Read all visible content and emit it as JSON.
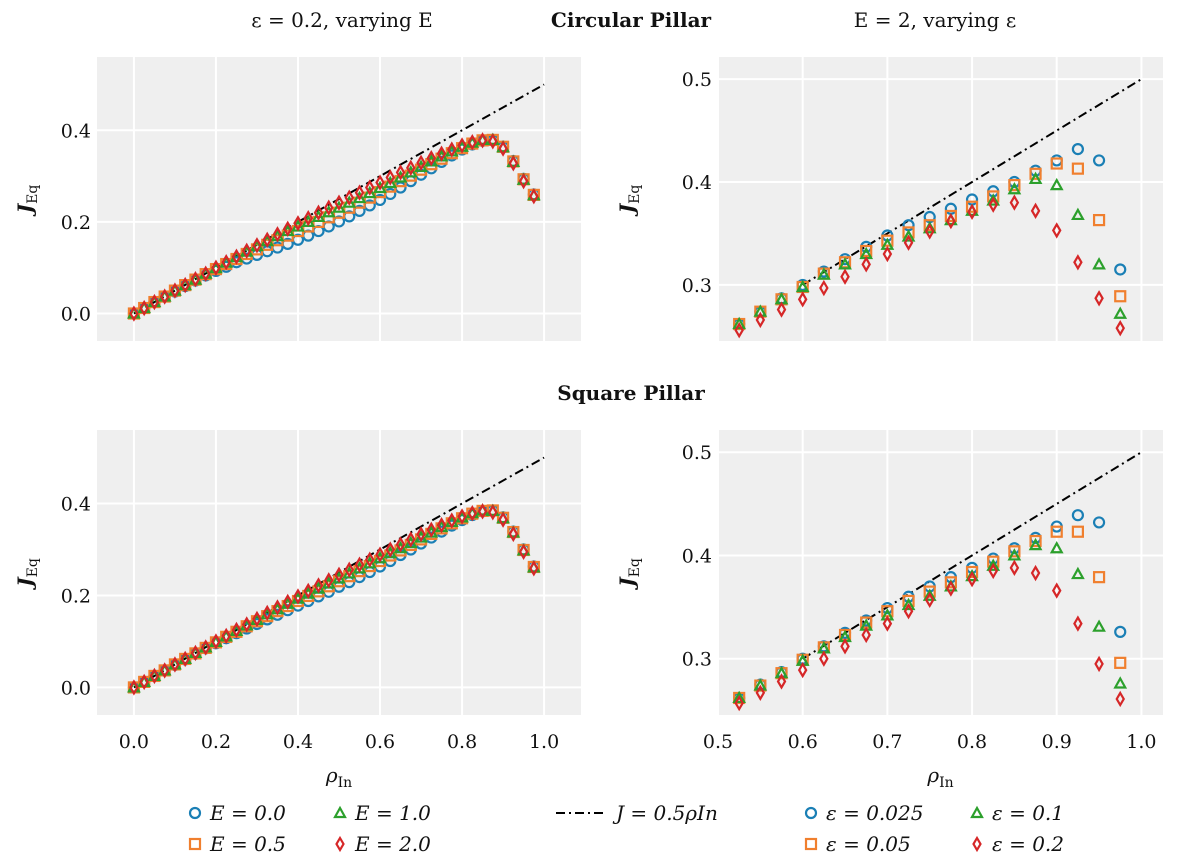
{
  "header": {
    "left_title": "ε = 0.2, varying E",
    "center_title_top": "Circular Pillar",
    "center_title_bottom": "Square Pillar",
    "right_title": "E = 2, varying ε"
  },
  "colors": {
    "series_1": "#1a7fb5",
    "series_2": "#f07f2e",
    "series_3": "#2ca02c",
    "series_4": "#d62728",
    "reference": "#000000",
    "panel_background": "#efefef",
    "grid": "#ffffff"
  },
  "legend": {
    "left": [
      "E = 0.0",
      "E = 0.5",
      "E = 1.0",
      "E = 2.0"
    ],
    "middle": "J = 0.5ρIn",
    "right": [
      "ε = 0.025",
      "ε = 0.05",
      "ε = 0.1",
      "ε = 0.2"
    ]
  },
  "chart_data": [
    {
      "id": "circular-left",
      "type": "scatter",
      "title": "ε = 0.2, varying E",
      "xlabel": "ρIn",
      "ylabel": "JEq",
      "xlim": [
        -0.09,
        1.09
      ],
      "ylim": [
        -0.06,
        0.56
      ],
      "xticks": [
        0.0,
        0.2,
        0.4,
        0.6,
        0.8,
        1.0
      ],
      "xtick_labels": [
        "0.0",
        "0.2",
        "0.4",
        "0.6",
        "0.8",
        "1.0"
      ],
      "show_x_tick_labels": false,
      "yticks": [
        0.0,
        0.2,
        0.4
      ],
      "ytick_labels": [
        "0.0",
        "0.2",
        "0.4"
      ],
      "grid": true,
      "reference_line": {
        "label": "J = 0.5ρIn",
        "slope": 0.5,
        "x": [
          0.0,
          1.0
        ]
      },
      "x": [
        0.0,
        0.025,
        0.05,
        0.075,
        0.1,
        0.125,
        0.15,
        0.175,
        0.2,
        0.225,
        0.25,
        0.275,
        0.3,
        0.325,
        0.35,
        0.375,
        0.4,
        0.425,
        0.45,
        0.475,
        0.5,
        0.525,
        0.55,
        0.575,
        0.6,
        0.625,
        0.65,
        0.675,
        0.7,
        0.725,
        0.75,
        0.775,
        0.8,
        0.825,
        0.85,
        0.875,
        0.9,
        0.925,
        0.95,
        0.975
      ],
      "series": [
        {
          "name": "E = 0.0",
          "marker": "circle",
          "color": "#1a7fb5",
          "values": [
            0.0,
            0.012,
            0.025,
            0.037,
            0.048,
            0.06,
            0.072,
            0.083,
            0.093,
            0.102,
            0.112,
            0.12,
            0.128,
            0.136,
            0.144,
            0.152,
            0.161,
            0.17,
            0.18,
            0.19,
            0.201,
            0.212,
            0.224,
            0.236,
            0.248,
            0.261,
            0.275,
            0.289,
            0.303,
            0.317,
            0.331,
            0.345,
            0.358,
            0.369,
            0.377,
            0.379,
            0.364,
            0.333,
            0.294,
            0.26
          ]
        },
        {
          "name": "E = 0.5",
          "marker": "square",
          "color": "#f07f2e",
          "values": [
            0.0,
            0.012,
            0.025,
            0.037,
            0.05,
            0.062,
            0.074,
            0.086,
            0.097,
            0.108,
            0.119,
            0.13,
            0.14,
            0.15,
            0.16,
            0.17,
            0.18,
            0.19,
            0.2,
            0.21,
            0.22,
            0.231,
            0.242,
            0.253,
            0.265,
            0.277,
            0.289,
            0.301,
            0.314,
            0.326,
            0.338,
            0.35,
            0.361,
            0.371,
            0.378,
            0.379,
            0.364,
            0.332,
            0.293,
            0.259
          ]
        },
        {
          "name": "E = 1.0",
          "marker": "triangle",
          "color": "#2ca02c",
          "values": [
            0.0,
            0.012,
            0.025,
            0.037,
            0.05,
            0.062,
            0.074,
            0.087,
            0.099,
            0.111,
            0.123,
            0.135,
            0.147,
            0.158,
            0.169,
            0.18,
            0.19,
            0.2,
            0.211,
            0.221,
            0.231,
            0.242,
            0.252,
            0.263,
            0.274,
            0.285,
            0.297,
            0.308,
            0.32,
            0.332,
            0.343,
            0.354,
            0.364,
            0.373,
            0.379,
            0.379,
            0.363,
            0.331,
            0.292,
            0.258
          ]
        },
        {
          "name": "E = 2.0",
          "marker": "diamond",
          "color": "#d62728",
          "values": [
            0.0,
            0.012,
            0.025,
            0.037,
            0.05,
            0.062,
            0.075,
            0.087,
            0.1,
            0.112,
            0.124,
            0.137,
            0.149,
            0.161,
            0.173,
            0.185,
            0.197,
            0.208,
            0.22,
            0.231,
            0.242,
            0.253,
            0.264,
            0.275,
            0.286,
            0.297,
            0.308,
            0.318,
            0.329,
            0.339,
            0.349,
            0.358,
            0.367,
            0.374,
            0.378,
            0.376,
            0.36,
            0.328,
            0.289,
            0.256
          ]
        }
      ]
    },
    {
      "id": "circular-right",
      "type": "scatter",
      "title": "E = 2, varying ε",
      "xlabel": "ρIn",
      "ylabel": "JEq",
      "xlim": [
        0.5,
        1.0255
      ],
      "ylim": [
        0.2455,
        0.5215
      ],
      "xticks": [
        0.5,
        0.6,
        0.7,
        0.8,
        0.9,
        1.0
      ],
      "xtick_labels": [
        "0.5",
        "0.6",
        "0.7",
        "0.8",
        "0.9",
        "1.0"
      ],
      "show_x_tick_labels": false,
      "yticks": [
        0.3,
        0.4,
        0.5
      ],
      "ytick_labels": [
        "0.3",
        "0.4",
        "0.5"
      ],
      "grid": true,
      "reference_line": {
        "label": "J = 0.5ρIn",
        "slope": 0.5,
        "x": [
          0.6,
          1.0
        ]
      },
      "x": [
        0.525,
        0.55,
        0.575,
        0.6,
        0.625,
        0.65,
        0.675,
        0.7,
        0.725,
        0.75,
        0.775,
        0.8,
        0.825,
        0.85,
        0.875,
        0.9,
        0.925,
        0.95,
        0.975
      ],
      "series": [
        {
          "name": "ε = 0.025",
          "marker": "circle",
          "color": "#1a7fb5",
          "values": [
            0.262,
            0.274,
            0.287,
            0.3,
            0.313,
            0.325,
            0.337,
            0.348,
            0.358,
            0.366,
            0.374,
            0.383,
            0.391,
            0.4,
            0.411,
            0.421,
            0.432,
            0.421,
            0.315
          ]
        },
        {
          "name": "ε = 0.05",
          "marker": "square",
          "color": "#f07f2e",
          "values": [
            0.262,
            0.274,
            0.286,
            0.298,
            0.311,
            0.322,
            0.333,
            0.343,
            0.351,
            0.358,
            0.367,
            0.376,
            0.386,
            0.397,
            0.408,
            0.418,
            0.413,
            0.363,
            0.289
          ]
        },
        {
          "name": "ε = 0.1",
          "marker": "triangle",
          "color": "#2ca02c",
          "values": [
            0.262,
            0.274,
            0.286,
            0.298,
            0.31,
            0.32,
            0.33,
            0.339,
            0.347,
            0.355,
            0.363,
            0.372,
            0.382,
            0.393,
            0.403,
            0.397,
            0.368,
            0.32,
            0.272
          ]
        },
        {
          "name": "ε = 0.2",
          "marker": "diamond",
          "color": "#d62728",
          "values": [
            0.256,
            0.266,
            0.276,
            0.286,
            0.297,
            0.308,
            0.32,
            0.33,
            0.341,
            0.352,
            0.362,
            0.371,
            0.378,
            0.38,
            0.372,
            0.353,
            0.322,
            0.287,
            0.258
          ]
        }
      ]
    },
    {
      "id": "square-left",
      "type": "scatter",
      "title": "ε = 0.2, varying E",
      "xlabel": "ρIn",
      "ylabel": "JEq",
      "xlim": [
        -0.09,
        1.09
      ],
      "ylim": [
        -0.06,
        0.56
      ],
      "xticks": [
        0.0,
        0.2,
        0.4,
        0.6,
        0.8,
        1.0
      ],
      "xtick_labels": [
        "0.0",
        "0.2",
        "0.4",
        "0.6",
        "0.8",
        "1.0"
      ],
      "show_x_tick_labels": true,
      "yticks": [
        0.0,
        0.2,
        0.4
      ],
      "ytick_labels": [
        "0.0",
        "0.2",
        "0.4"
      ],
      "grid": true,
      "reference_line": {
        "label": "J = 0.5ρIn",
        "slope": 0.5,
        "x": [
          0.0,
          1.0
        ]
      },
      "x": [
        0.0,
        0.025,
        0.05,
        0.075,
        0.1,
        0.125,
        0.15,
        0.175,
        0.2,
        0.225,
        0.25,
        0.275,
        0.3,
        0.325,
        0.35,
        0.375,
        0.4,
        0.425,
        0.45,
        0.475,
        0.5,
        0.525,
        0.55,
        0.575,
        0.6,
        0.625,
        0.65,
        0.675,
        0.7,
        0.725,
        0.75,
        0.775,
        0.8,
        0.825,
        0.85,
        0.875,
        0.9,
        0.925,
        0.95,
        0.975
      ],
      "series": [
        {
          "name": "E = 0.0",
          "marker": "circle",
          "color": "#1a7fb5",
          "values": [
            0.0,
            0.012,
            0.025,
            0.037,
            0.049,
            0.061,
            0.073,
            0.085,
            0.096,
            0.107,
            0.118,
            0.128,
            0.138,
            0.148,
            0.158,
            0.168,
            0.178,
            0.188,
            0.198,
            0.208,
            0.219,
            0.229,
            0.24,
            0.251,
            0.263,
            0.275,
            0.288,
            0.3,
            0.313,
            0.326,
            0.339,
            0.352,
            0.364,
            0.375,
            0.383,
            0.385,
            0.37,
            0.339,
            0.3,
            0.263
          ]
        },
        {
          "name": "E = 0.5",
          "marker": "square",
          "color": "#f07f2e",
          "values": [
            0.0,
            0.012,
            0.025,
            0.037,
            0.05,
            0.062,
            0.074,
            0.086,
            0.098,
            0.11,
            0.121,
            0.133,
            0.144,
            0.155,
            0.166,
            0.177,
            0.188,
            0.199,
            0.209,
            0.22,
            0.231,
            0.242,
            0.253,
            0.264,
            0.275,
            0.287,
            0.298,
            0.31,
            0.322,
            0.334,
            0.346,
            0.357,
            0.368,
            0.378,
            0.384,
            0.385,
            0.369,
            0.338,
            0.299,
            0.262
          ]
        },
        {
          "name": "E = 1.0",
          "marker": "triangle",
          "color": "#2ca02c",
          "values": [
            0.0,
            0.012,
            0.025,
            0.037,
            0.05,
            0.062,
            0.075,
            0.087,
            0.099,
            0.111,
            0.123,
            0.135,
            0.147,
            0.159,
            0.17,
            0.182,
            0.193,
            0.204,
            0.215,
            0.226,
            0.237,
            0.248,
            0.259,
            0.27,
            0.281,
            0.292,
            0.303,
            0.314,
            0.326,
            0.337,
            0.349,
            0.36,
            0.37,
            0.379,
            0.385,
            0.384,
            0.368,
            0.337,
            0.298,
            0.261
          ]
        },
        {
          "name": "E = 2.0",
          "marker": "diamond",
          "color": "#d62728",
          "values": [
            0.0,
            0.012,
            0.025,
            0.037,
            0.05,
            0.062,
            0.075,
            0.087,
            0.1,
            0.112,
            0.125,
            0.137,
            0.149,
            0.162,
            0.174,
            0.186,
            0.198,
            0.21,
            0.222,
            0.233,
            0.245,
            0.256,
            0.267,
            0.278,
            0.289,
            0.3,
            0.311,
            0.322,
            0.333,
            0.343,
            0.353,
            0.363,
            0.372,
            0.379,
            0.383,
            0.381,
            0.365,
            0.334,
            0.295,
            0.259
          ]
        }
      ]
    },
    {
      "id": "square-right",
      "type": "scatter",
      "title": "E = 2, varying ε",
      "xlabel": "ρIn",
      "ylabel": "JEq",
      "xlim": [
        0.5,
        1.0255
      ],
      "ylim": [
        0.2455,
        0.5215
      ],
      "xticks": [
        0.5,
        0.6,
        0.7,
        0.8,
        0.9,
        1.0
      ],
      "xtick_labels": [
        "0.5",
        "0.6",
        "0.7",
        "0.8",
        "0.9",
        "1.0"
      ],
      "show_x_tick_labels": true,
      "yticks": [
        0.3,
        0.4,
        0.5
      ],
      "ytick_labels": [
        "0.3",
        "0.4",
        "0.5"
      ],
      "grid": true,
      "reference_line": {
        "label": "J = 0.5ρIn",
        "slope": 0.5,
        "x": [
          0.6,
          1.0
        ]
      },
      "x": [
        0.525,
        0.55,
        0.575,
        0.6,
        0.625,
        0.65,
        0.675,
        0.7,
        0.725,
        0.75,
        0.775,
        0.8,
        0.825,
        0.85,
        0.875,
        0.9,
        0.925,
        0.95,
        0.975
      ],
      "series": [
        {
          "name": "ε = 0.025",
          "marker": "circle",
          "color": "#1a7fb5",
          "values": [
            0.262,
            0.275,
            0.287,
            0.3,
            0.312,
            0.325,
            0.337,
            0.349,
            0.36,
            0.37,
            0.379,
            0.388,
            0.397,
            0.407,
            0.417,
            0.428,
            0.439,
            0.432,
            0.326
          ]
        },
        {
          "name": "ε = 0.05",
          "marker": "square",
          "color": "#f07f2e",
          "values": [
            0.262,
            0.274,
            0.286,
            0.299,
            0.311,
            0.323,
            0.335,
            0.346,
            0.356,
            0.365,
            0.374,
            0.384,
            0.394,
            0.404,
            0.414,
            0.423,
            0.423,
            0.379,
            0.296
          ]
        },
        {
          "name": "ε = 0.1",
          "marker": "triangle",
          "color": "#2ca02c",
          "values": [
            0.262,
            0.274,
            0.286,
            0.298,
            0.31,
            0.321,
            0.332,
            0.342,
            0.352,
            0.361,
            0.37,
            0.38,
            0.39,
            0.4,
            0.41,
            0.407,
            0.382,
            0.331,
            0.276
          ]
        },
        {
          "name": "ε = 0.2",
          "marker": "diamond",
          "color": "#d62728",
          "values": [
            0.257,
            0.267,
            0.278,
            0.289,
            0.3,
            0.312,
            0.323,
            0.334,
            0.346,
            0.357,
            0.368,
            0.377,
            0.385,
            0.388,
            0.383,
            0.366,
            0.334,
            0.295,
            0.261
          ]
        }
      ]
    }
  ]
}
